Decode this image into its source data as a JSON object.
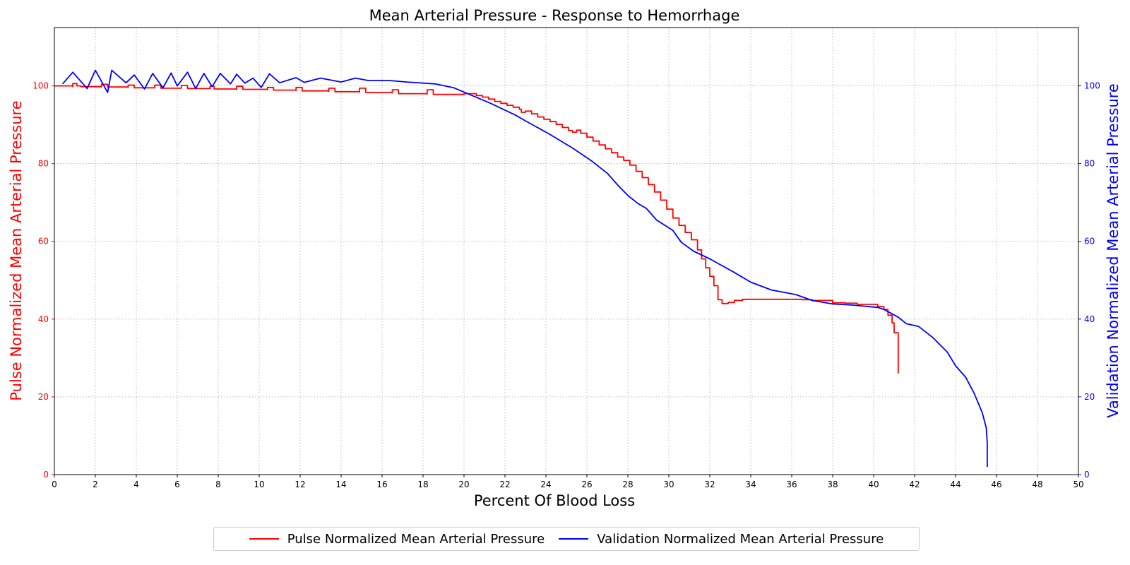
{
  "chart_data": {
    "type": "line",
    "title": "Mean Arterial Pressure - Response to Hemorrhage",
    "xlabel": "Percent Of Blood Loss",
    "ylabel_left": "Pulse Normalized Mean Arterial Pressure",
    "ylabel_right": "Validation Normalized Mean Arterial Pressure",
    "xlim": [
      0,
      50
    ],
    "ylim_left": [
      0,
      115
    ],
    "ylim_right": [
      0,
      115
    ],
    "x_ticks": [
      0,
      2,
      4,
      6,
      8,
      10,
      12,
      14,
      16,
      18,
      20,
      22,
      24,
      26,
      28,
      30,
      32,
      34,
      36,
      38,
      40,
      42,
      44,
      46,
      48,
      50
    ],
    "y_ticks_left": [
      0,
      20,
      40,
      60,
      80,
      100
    ],
    "y_ticks_right": [
      0,
      20,
      40,
      60,
      80,
      100
    ],
    "grid": true,
    "legend_position": "bottom-center",
    "colors": {
      "left_axis": "#ff0000",
      "right_axis": "#0000ff"
    },
    "series": [
      {
        "name": "Pulse Normalized Mean Arterial Pressure",
        "axis": "left",
        "color": "#ff0000",
        "step": true,
        "points": [
          [
            0,
            100.0
          ],
          [
            0.9,
            99.8
          ],
          [
            0.9,
            100.6
          ],
          [
            1.1,
            100.6
          ],
          [
            1.1,
            100.0
          ],
          [
            1.3,
            99.8
          ],
          [
            2.3,
            99.7
          ],
          [
            2.3,
            100.4
          ],
          [
            2.6,
            100.4
          ],
          [
            2.6,
            99.7
          ],
          [
            3.6,
            99.6
          ],
          [
            3.6,
            100.2
          ],
          [
            3.9,
            100.2
          ],
          [
            3.9,
            99.5
          ],
          [
            4.9,
            99.5
          ],
          [
            4.9,
            100.2
          ],
          [
            5.2,
            100.2
          ],
          [
            5.2,
            99.4
          ],
          [
            6.2,
            99.4
          ],
          [
            6.2,
            100.1
          ],
          [
            6.5,
            100.1
          ],
          [
            6.5,
            99.3
          ],
          [
            7.6,
            99.3
          ],
          [
            7.6,
            99.9
          ],
          [
            7.8,
            99.9
          ],
          [
            7.8,
            99.2
          ],
          [
            8.9,
            99.1
          ],
          [
            8.9,
            99.9
          ],
          [
            9.2,
            99.9
          ],
          [
            9.2,
            99.1
          ],
          [
            10.4,
            99.0
          ],
          [
            10.4,
            99.6
          ],
          [
            10.7,
            99.6
          ],
          [
            10.7,
            98.9
          ],
          [
            11.8,
            98.8
          ],
          [
            11.8,
            99.6
          ],
          [
            12.1,
            99.6
          ],
          [
            12.1,
            98.7
          ],
          [
            13.4,
            98.6
          ],
          [
            13.4,
            99.4
          ],
          [
            13.7,
            99.4
          ],
          [
            13.7,
            98.5
          ],
          [
            14.9,
            98.4
          ],
          [
            14.9,
            99.4
          ],
          [
            15.2,
            99.4
          ],
          [
            15.2,
            98.3
          ],
          [
            16.5,
            98.2
          ],
          [
            16.5,
            99.0
          ],
          [
            16.8,
            99.0
          ],
          [
            16.8,
            98.0
          ],
          [
            18.2,
            97.9
          ],
          [
            18.2,
            99.0
          ],
          [
            18.5,
            99.0
          ],
          [
            18.5,
            97.8
          ],
          [
            20.0,
            98.0
          ],
          [
            20.3,
            98.0
          ],
          [
            20.6,
            97.5
          ],
          [
            20.9,
            97.1
          ],
          [
            21.2,
            96.6
          ],
          [
            21.5,
            96.0
          ],
          [
            21.8,
            95.5
          ],
          [
            22.1,
            95.0
          ],
          [
            22.4,
            94.5
          ],
          [
            22.7,
            94.0
          ],
          [
            22.8,
            93.2
          ],
          [
            23.0,
            93.5
          ],
          [
            23.3,
            92.8
          ],
          [
            23.6,
            92.0
          ],
          [
            23.9,
            91.4
          ],
          [
            24.2,
            90.8
          ],
          [
            24.5,
            90.1
          ],
          [
            24.8,
            89.3
          ],
          [
            25.1,
            88.5
          ],
          [
            25.3,
            88.1
          ],
          [
            25.5,
            88.6
          ],
          [
            25.7,
            87.8
          ],
          [
            26.0,
            86.8
          ],
          [
            26.3,
            85.8
          ],
          [
            26.6,
            84.8
          ],
          [
            26.9,
            83.8
          ],
          [
            27.2,
            82.8
          ],
          [
            27.5,
            81.7
          ],
          [
            27.8,
            80.8
          ],
          [
            28.1,
            79.6
          ],
          [
            28.4,
            78.0
          ],
          [
            28.7,
            76.4
          ],
          [
            29.0,
            74.6
          ],
          [
            29.3,
            72.7
          ],
          [
            29.6,
            70.6
          ],
          [
            29.9,
            68.3
          ],
          [
            30.2,
            66.0
          ],
          [
            30.5,
            64.1
          ],
          [
            30.8,
            62.3
          ],
          [
            31.1,
            60.4
          ],
          [
            31.4,
            57.8
          ],
          [
            31.6,
            55.5
          ],
          [
            31.8,
            53.2
          ],
          [
            32.0,
            51.0
          ],
          [
            32.2,
            48.6
          ],
          [
            32.4,
            45.0
          ],
          [
            32.6,
            44.0
          ],
          [
            32.9,
            44.3
          ],
          [
            33.2,
            44.8
          ],
          [
            33.6,
            45.1
          ],
          [
            34.0,
            45.1
          ],
          [
            36.0,
            45.1
          ],
          [
            36.5,
            45.0
          ],
          [
            37.0,
            44.8
          ],
          [
            38.0,
            44.2
          ],
          [
            38.6,
            44.1
          ],
          [
            39.2,
            43.8
          ],
          [
            40.2,
            43.2
          ],
          [
            40.5,
            42.5
          ],
          [
            40.7,
            41.0
          ],
          [
            40.9,
            39.0
          ],
          [
            41.0,
            36.5
          ],
          [
            41.2,
            36.0
          ],
          [
            41.2,
            26.0
          ]
        ]
      },
      {
        "name": "Validation Normalized Mean Arterial Pressure",
        "axis": "right",
        "color": "#0000ff",
        "step": false,
        "points": [
          [
            0.4,
            100.5
          ],
          [
            0.9,
            103.5
          ],
          [
            1.6,
            99.3
          ],
          [
            2.0,
            104.0
          ],
          [
            2.6,
            98.3
          ],
          [
            2.8,
            104.0
          ],
          [
            3.5,
            100.8
          ],
          [
            3.9,
            102.8
          ],
          [
            4.4,
            99.2
          ],
          [
            4.8,
            103.2
          ],
          [
            5.3,
            99.5
          ],
          [
            5.7,
            103.3
          ],
          [
            6.0,
            100.0
          ],
          [
            6.5,
            103.5
          ],
          [
            6.9,
            99.3
          ],
          [
            7.3,
            103.2
          ],
          [
            7.7,
            99.8
          ],
          [
            8.1,
            103.2
          ],
          [
            8.6,
            100.5
          ],
          [
            8.9,
            103.0
          ],
          [
            9.3,
            100.7
          ],
          [
            9.7,
            102.0
          ],
          [
            10.1,
            99.6
          ],
          [
            10.5,
            103.1
          ],
          [
            11.0,
            100.8
          ],
          [
            11.8,
            102.1
          ],
          [
            12.2,
            100.9
          ],
          [
            13.0,
            102.0
          ],
          [
            14.0,
            101.0
          ],
          [
            14.7,
            102.0
          ],
          [
            15.3,
            101.4
          ],
          [
            16.3,
            101.4
          ],
          [
            17.2,
            101.0
          ],
          [
            18.6,
            100.5
          ],
          [
            19.5,
            99.5
          ],
          [
            20.4,
            97.5
          ],
          [
            21.3,
            95.5
          ],
          [
            22.5,
            92.5
          ],
          [
            23.0,
            91.0
          ],
          [
            24.2,
            87.5
          ],
          [
            25.3,
            84.0
          ],
          [
            26.2,
            80.8
          ],
          [
            27.0,
            77.5
          ],
          [
            27.5,
            74.5
          ],
          [
            28.0,
            71.8
          ],
          [
            28.5,
            69.7
          ],
          [
            28.9,
            68.5
          ],
          [
            29.4,
            65.5
          ],
          [
            30.2,
            62.8
          ],
          [
            30.6,
            59.8
          ],
          [
            31.2,
            57.5
          ],
          [
            32.0,
            55.5
          ],
          [
            33.2,
            52.0
          ],
          [
            34.0,
            49.5
          ],
          [
            35.0,
            47.5
          ],
          [
            36.2,
            46.3
          ],
          [
            37.0,
            44.8
          ],
          [
            38.0,
            43.9
          ],
          [
            39.0,
            43.6
          ],
          [
            40.2,
            43.0
          ],
          [
            40.5,
            42.5
          ],
          [
            41.2,
            40.5
          ],
          [
            41.6,
            38.8
          ],
          [
            42.2,
            38.1
          ],
          [
            42.9,
            35.2
          ],
          [
            43.6,
            31.5
          ],
          [
            44.0,
            28.0
          ],
          [
            44.5,
            25.0
          ],
          [
            44.9,
            21.0
          ],
          [
            45.3,
            16.0
          ],
          [
            45.5,
            12.0
          ],
          [
            45.55,
            8.0
          ],
          [
            45.55,
            2.0
          ]
        ]
      }
    ]
  }
}
